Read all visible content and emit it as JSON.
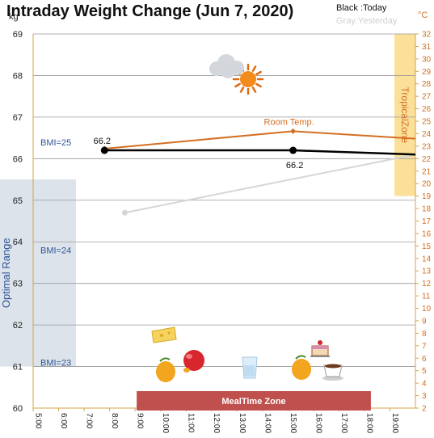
{
  "chart_data": {
    "type": "line",
    "title": "Intraday Weight Change (Jun 7, 2020)",
    "legend": {
      "today": "Black :Today",
      "yesterday": "Gray:Yesterday"
    },
    "left_axis": {
      "unit": "kg",
      "min": 60,
      "max": 69,
      "ticks": [
        60,
        61,
        62,
        63,
        64,
        65,
        66,
        67,
        68,
        69
      ]
    },
    "right_axis": {
      "unit": "°C",
      "min": 2,
      "max": 32,
      "ticks": [
        2,
        3,
        4,
        5,
        6,
        7,
        8,
        9,
        10,
        11,
        12,
        13,
        14,
        15,
        16,
        17,
        18,
        19,
        20,
        21,
        22,
        23,
        24,
        25,
        26,
        27,
        28,
        29,
        30,
        31,
        32
      ]
    },
    "x_axis": {
      "min": 5,
      "max": 20,
      "ticks": [
        "5:00",
        "6:00",
        "7:00",
        "8:00",
        "9:00",
        "10:00",
        "11:00",
        "12:00",
        "13:00",
        "14:00",
        "15:00",
        "16:00",
        "17:00",
        "18:00",
        "19:00"
      ]
    },
    "series": [
      {
        "name": "Today",
        "color": "#000000",
        "unit": "kg",
        "points": [
          {
            "x": 7.8,
            "y": 66.2
          },
          {
            "x": 15.2,
            "y": 66.2
          },
          {
            "x": 20,
            "y": 66.1
          }
        ],
        "labels": [
          "66.2",
          "66.2"
        ]
      },
      {
        "name": "Yesterday",
        "color": "#d6d6d6",
        "unit": "kg",
        "points": [
          {
            "x": 8.6,
            "y": 64.7
          },
          {
            "x": 20,
            "y": 66.1
          }
        ]
      },
      {
        "name": "Room Temp.",
        "color": "#d46f23",
        "unit": "°C",
        "points": [
          {
            "x": 7.8,
            "y": 22.8
          },
          {
            "x": 15.2,
            "y": 24.2
          },
          {
            "x": 20,
            "y": 23.6
          }
        ]
      }
    ],
    "bands": {
      "optimal_range": {
        "label": "Optimal Range",
        "y_min": 61,
        "y_max": 65.5,
        "color": "#dde3ea"
      },
      "bmi_labels": [
        {
          "label": "BMI=25",
          "y": 66.4
        },
        {
          "label": "BMI=24",
          "y": 63.8
        },
        {
          "label": "BMI=23",
          "y": 61.1
        }
      ],
      "tropical_zone": {
        "label": "TropicalZone",
        "t_min": 19,
        "t_max": 32,
        "color": "#fbe09a"
      },
      "meal_time_zone": {
        "label": "MealTime Zone",
        "x_min": 9,
        "x_max": 18.0,
        "color": "#c0504d"
      }
    },
    "grid": true
  }
}
